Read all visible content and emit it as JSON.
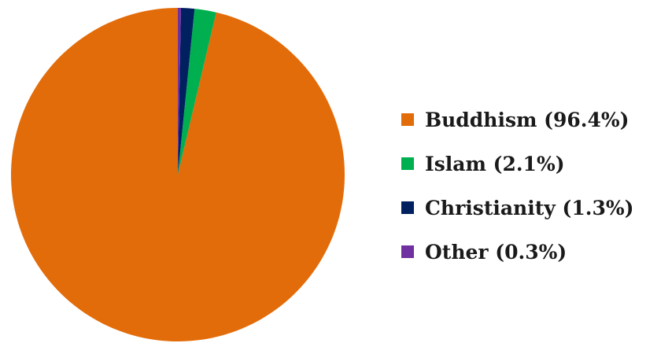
{
  "chart_data": {
    "type": "pie",
    "title": "",
    "categories": [
      "Buddhism",
      "Islam",
      "Christianity",
      "Other"
    ],
    "values": [
      96.4,
      2.1,
      1.3,
      0.3
    ],
    "colors": [
      "#e36c0a",
      "#00b050",
      "#002060",
      "#7030a0"
    ],
    "legend_placement": "right",
    "legend_labels": [
      "Buddhism (96.4%)",
      "Islam (2.1%)",
      "Christianity (1.3%)",
      "Other (0.3%)"
    ]
  }
}
